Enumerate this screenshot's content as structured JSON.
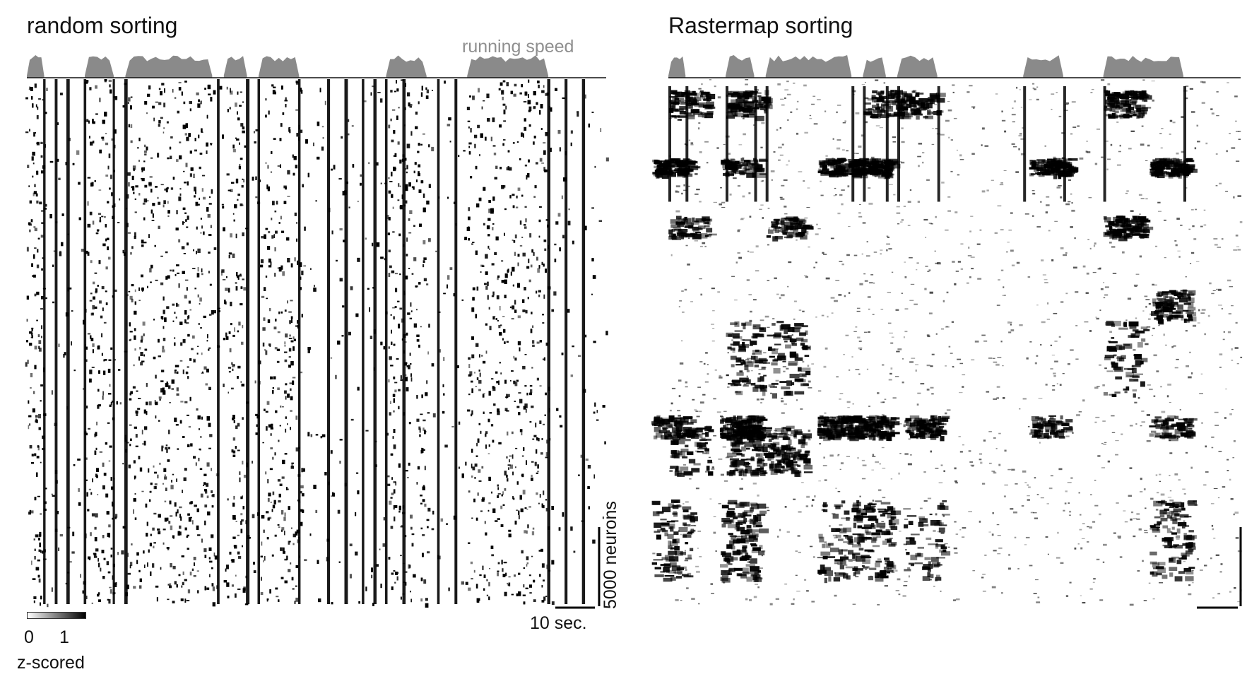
{
  "chart_data": [
    {
      "type": "heatmap",
      "title": "random sorting",
      "trace_label": "running speed",
      "colorbar": {
        "ticks": [
          "0",
          "1"
        ],
        "label": "z-scored",
        "range": [
          0,
          1
        ]
      },
      "scalebars": {
        "time": "10 sec.",
        "neurons": "5000 neurons"
      },
      "running_speed_bouts_frac": [
        [
          0.0,
          0.03
        ],
        [
          0.1,
          0.15
        ],
        [
          0.17,
          0.32
        ],
        [
          0.34,
          0.38
        ],
        [
          0.4,
          0.47
        ],
        [
          0.62,
          0.69
        ],
        [
          0.76,
          0.9
        ]
      ],
      "dark_bands_frac": [
        0.03,
        0.05,
        0.07,
        0.1,
        0.15,
        0.17,
        0.33,
        0.38,
        0.4,
        0.47,
        0.52,
        0.55,
        0.58,
        0.6,
        0.62,
        0.65,
        0.71,
        0.74,
        0.9,
        0.93,
        0.96
      ]
    },
    {
      "type": "heatmap",
      "title": "Rastermap sorting",
      "colorbar": {
        "range": [
          0,
          1
        ]
      }
    }
  ]
}
